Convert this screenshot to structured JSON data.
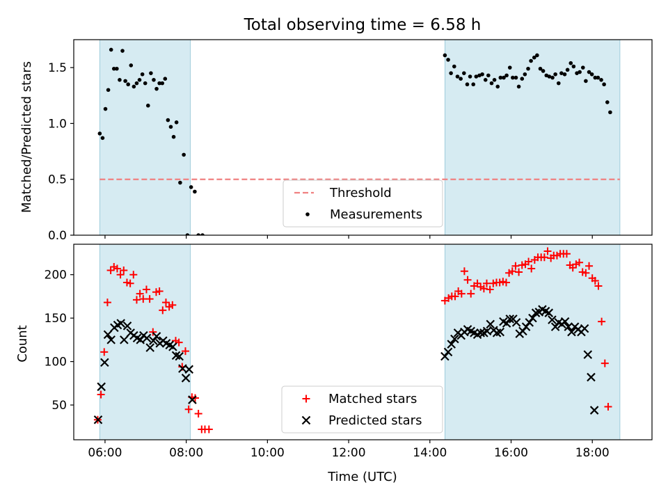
{
  "title": "Total observing time = 6.58 h",
  "colors": {
    "shade": "#add8e6",
    "threshold": "#f08080",
    "measurement": "#000000",
    "matched": "#ff0000",
    "predicted": "#000000"
  },
  "chart_data": [
    {
      "type": "scatter",
      "ylabel": "Matched/Predicted stars",
      "xlabel": "",
      "xlim_hours": [
        5.23,
        19.47
      ],
      "ylim": [
        0,
        1.75
      ],
      "yticks": [
        0.0,
        0.5,
        1.0,
        1.5
      ],
      "ytick_labels": [
        "0.0",
        "0.5",
        "1.0",
        "1.5"
      ],
      "shaded_intervals_hours": [
        [
          5.87,
          8.1
        ],
        [
          14.37,
          18.68
        ]
      ],
      "threshold": {
        "label": "Threshold",
        "value": 0.5,
        "style": "dashed",
        "x_range_hours": [
          5.87,
          18.68
        ]
      },
      "legend": {
        "position": "bottom-center",
        "entries": [
          "Threshold",
          "Measurements"
        ]
      },
      "series": [
        {
          "name": "Measurements",
          "marker": "dot",
          "points": [
            [
              5.87,
              0.91
            ],
            [
              5.94,
              0.87
            ],
            [
              6.01,
              1.13
            ],
            [
              6.08,
              1.3
            ],
            [
              6.15,
              1.66
            ],
            [
              6.22,
              1.49
            ],
            [
              6.29,
              1.49
            ],
            [
              6.36,
              1.39
            ],
            [
              6.43,
              1.65
            ],
            [
              6.5,
              1.38
            ],
            [
              6.57,
              1.35
            ],
            [
              6.64,
              1.52
            ],
            [
              6.71,
              1.33
            ],
            [
              6.78,
              1.36
            ],
            [
              6.85,
              1.39
            ],
            [
              6.92,
              1.44
            ],
            [
              6.99,
              1.36
            ],
            [
              7.06,
              1.16
            ],
            [
              7.13,
              1.45
            ],
            [
              7.2,
              1.39
            ],
            [
              7.27,
              1.31
            ],
            [
              7.34,
              1.36
            ],
            [
              7.41,
              1.36
            ],
            [
              7.48,
              1.4
            ],
            [
              7.55,
              1.03
            ],
            [
              7.62,
              0.97
            ],
            [
              7.69,
              0.88
            ],
            [
              7.76,
              1.01
            ],
            [
              7.85,
              0.47
            ],
            [
              7.94,
              0.72
            ],
            [
              8.03,
              0.0
            ],
            [
              8.12,
              0.43
            ],
            [
              8.21,
              0.39
            ],
            [
              8.3,
              0.0
            ],
            [
              8.4,
              0.0
            ],
            [
              14.37,
              1.61
            ],
            [
              14.45,
              1.57
            ],
            [
              14.52,
              1.45
            ],
            [
              14.6,
              1.51
            ],
            [
              14.68,
              1.42
            ],
            [
              14.76,
              1.4
            ],
            [
              14.84,
              1.45
            ],
            [
              14.92,
              1.35
            ],
            [
              14.99,
              1.42
            ],
            [
              15.07,
              1.35
            ],
            [
              15.14,
              1.42
            ],
            [
              15.22,
              1.43
            ],
            [
              15.29,
              1.44
            ],
            [
              15.37,
              1.39
            ],
            [
              15.44,
              1.43
            ],
            [
              15.52,
              1.36
            ],
            [
              15.59,
              1.39
            ],
            [
              15.67,
              1.33
            ],
            [
              15.74,
              1.41
            ],
            [
              15.82,
              1.41
            ],
            [
              15.89,
              1.43
            ],
            [
              15.97,
              1.5
            ],
            [
              16.04,
              1.41
            ],
            [
              16.12,
              1.41
            ],
            [
              16.19,
              1.33
            ],
            [
              16.27,
              1.4
            ],
            [
              16.34,
              1.44
            ],
            [
              16.42,
              1.49
            ],
            [
              16.49,
              1.56
            ],
            [
              16.57,
              1.59
            ],
            [
              16.64,
              1.61
            ],
            [
              16.72,
              1.49
            ],
            [
              16.79,
              1.47
            ],
            [
              16.87,
              1.43
            ],
            [
              16.94,
              1.42
            ],
            [
              17.02,
              1.41
            ],
            [
              17.09,
              1.44
            ],
            [
              17.17,
              1.36
            ],
            [
              17.24,
              1.45
            ],
            [
              17.32,
              1.44
            ],
            [
              17.39,
              1.48
            ],
            [
              17.47,
              1.54
            ],
            [
              17.54,
              1.51
            ],
            [
              17.62,
              1.45
            ],
            [
              17.69,
              1.46
            ],
            [
              17.77,
              1.5
            ],
            [
              17.84,
              1.38
            ],
            [
              17.92,
              1.46
            ],
            [
              17.99,
              1.44
            ],
            [
              18.07,
              1.41
            ],
            [
              18.14,
              1.41
            ],
            [
              18.22,
              1.39
            ],
            [
              18.29,
              1.35
            ],
            [
              18.37,
              1.19
            ],
            [
              18.44,
              1.1
            ]
          ]
        }
      ]
    },
    {
      "type": "scatter",
      "ylabel": "Count",
      "xlabel": "Time (UTC)",
      "xlim_hours": [
        5.23,
        19.47
      ],
      "ylim": [
        10,
        235
      ],
      "yticks": [
        50,
        100,
        150,
        200
      ],
      "ytick_labels": [
        "50",
        "100",
        "150",
        "200"
      ],
      "xticks_hours": [
        6,
        8,
        10,
        12,
        14,
        16,
        18
      ],
      "xtick_labels": [
        "06:00",
        "08:00",
        "10:00",
        "12:00",
        "14:00",
        "16:00",
        "18:00"
      ],
      "shaded_intervals_hours": [
        [
          5.87,
          8.1
        ],
        [
          14.37,
          18.68
        ]
      ],
      "legend": {
        "position": "bottom-center",
        "entries": [
          "Matched stars",
          "Predicted stars"
        ]
      },
      "series": [
        {
          "name": "Matched stars",
          "marker": "plus",
          "points": [
            [
              5.82,
              33
            ],
            [
              5.9,
              62
            ],
            [
              5.98,
              111
            ],
            [
              6.06,
              168
            ],
            [
              6.14,
              205
            ],
            [
              6.22,
              209
            ],
            [
              6.3,
              207
            ],
            [
              6.38,
              200
            ],
            [
              6.46,
              205
            ],
            [
              6.54,
              191
            ],
            [
              6.62,
              190
            ],
            [
              6.7,
              200
            ],
            [
              6.78,
              171
            ],
            [
              6.86,
              178
            ],
            [
              6.94,
              172
            ],
            [
              7.02,
              183
            ],
            [
              7.1,
              172
            ],
            [
              7.18,
              134
            ],
            [
              7.26,
              180
            ],
            [
              7.34,
              181
            ],
            [
              7.42,
              159
            ],
            [
              7.5,
              168
            ],
            [
              7.58,
              163
            ],
            [
              7.66,
              165
            ],
            [
              7.74,
              124
            ],
            [
              7.82,
              122
            ],
            [
              7.9,
              94
            ],
            [
              7.98,
              112
            ],
            [
              8.06,
              45
            ],
            [
              8.14,
              59
            ],
            [
              8.22,
              58
            ],
            [
              8.3,
              40
            ],
            [
              8.38,
              22
            ],
            [
              8.46,
              22
            ],
            [
              8.56,
              22
            ],
            [
              14.37,
              170
            ],
            [
              14.46,
              173
            ],
            [
              14.54,
              175
            ],
            [
              14.62,
              175
            ],
            [
              14.7,
              181
            ],
            [
              14.78,
              178
            ],
            [
              14.85,
              204
            ],
            [
              14.93,
              194
            ],
            [
              15.01,
              178
            ],
            [
              15.09,
              187
            ],
            [
              15.17,
              190
            ],
            [
              15.25,
              186
            ],
            [
              15.33,
              184
            ],
            [
              15.4,
              190
            ],
            [
              15.48,
              183
            ],
            [
              15.56,
              190
            ],
            [
              15.64,
              191
            ],
            [
              15.72,
              191
            ],
            [
              15.8,
              192
            ],
            [
              15.88,
              191
            ],
            [
              15.95,
              202
            ],
            [
              16.03,
              204
            ],
            [
              16.11,
              210
            ],
            [
              16.19,
              203
            ],
            [
              16.27,
              211
            ],
            [
              16.35,
              212
            ],
            [
              16.43,
              215
            ],
            [
              16.5,
              207
            ],
            [
              16.58,
              217
            ],
            [
              16.66,
              220
            ],
            [
              16.74,
              220
            ],
            [
              16.82,
              220
            ],
            [
              16.9,
              227
            ],
            [
              16.98,
              219
            ],
            [
              17.05,
              222
            ],
            [
              17.13,
              222
            ],
            [
              17.21,
              224
            ],
            [
              17.29,
              224
            ],
            [
              17.37,
              224
            ],
            [
              17.45,
              211
            ],
            [
              17.52,
              208
            ],
            [
              17.6,
              212
            ],
            [
              17.68,
              214
            ],
            [
              17.76,
              203
            ],
            [
              17.84,
              202
            ],
            [
              17.92,
              210
            ],
            [
              18.0,
              196
            ],
            [
              18.07,
              193
            ],
            [
              18.15,
              187
            ],
            [
              18.23,
              146
            ],
            [
              18.31,
              98
            ],
            [
              18.39,
              48
            ]
          ]
        },
        {
          "name": "Predicted stars",
          "marker": "x",
          "points": [
            [
              5.83,
              33
            ],
            [
              5.91,
              71
            ],
            [
              5.99,
              99
            ],
            [
              6.07,
              131
            ],
            [
              6.15,
              125
            ],
            [
              6.23,
              139
            ],
            [
              6.31,
              142
            ],
            [
              6.39,
              144
            ],
            [
              6.47,
              125
            ],
            [
              6.55,
              141
            ],
            [
              6.63,
              133
            ],
            [
              6.71,
              130
            ],
            [
              6.79,
              127
            ],
            [
              6.87,
              125
            ],
            [
              6.95,
              130
            ],
            [
              7.03,
              127
            ],
            [
              7.11,
              116
            ],
            [
              7.19,
              124
            ],
            [
              7.27,
              129
            ],
            [
              7.35,
              121
            ],
            [
              7.43,
              124
            ],
            [
              7.51,
              121
            ],
            [
              7.59,
              119
            ],
            [
              7.67,
              117
            ],
            [
              7.75,
              107
            ],
            [
              7.83,
              106
            ],
            [
              7.91,
              92
            ],
            [
              7.99,
              81
            ],
            [
              8.07,
              91
            ],
            [
              8.15,
              56
            ],
            [
              14.37,
              106
            ],
            [
              14.45,
              111
            ],
            [
              14.53,
              120
            ],
            [
              14.61,
              126
            ],
            [
              14.69,
              133
            ],
            [
              14.77,
              130
            ],
            [
              14.85,
              134
            ],
            [
              14.93,
              137
            ],
            [
              15.01,
              135
            ],
            [
              15.09,
              133
            ],
            [
              15.17,
              131
            ],
            [
              15.25,
              133
            ],
            [
              15.33,
              133
            ],
            [
              15.41,
              135
            ],
            [
              15.49,
              143
            ],
            [
              15.57,
              136
            ],
            [
              15.65,
              133
            ],
            [
              15.73,
              134
            ],
            [
              15.81,
              146
            ],
            [
              15.89,
              144
            ],
            [
              15.97,
              149
            ],
            [
              16.05,
              149
            ],
            [
              16.13,
              145
            ],
            [
              16.21,
              132
            ],
            [
              16.29,
              135
            ],
            [
              16.37,
              140
            ],
            [
              16.45,
              145
            ],
            [
              16.53,
              150
            ],
            [
              16.61,
              156
            ],
            [
              16.69,
              157
            ],
            [
              16.77,
              160
            ],
            [
              16.85,
              158
            ],
            [
              16.93,
              156
            ],
            [
              17.01,
              148
            ],
            [
              17.09,
              140
            ],
            [
              17.17,
              145
            ],
            [
              17.25,
              143
            ],
            [
              17.33,
              146
            ],
            [
              17.41,
              140
            ],
            [
              17.49,
              134
            ],
            [
              17.57,
              140
            ],
            [
              17.65,
              137
            ],
            [
              17.73,
              134
            ],
            [
              17.81,
              138
            ],
            [
              17.89,
              108
            ],
            [
              17.97,
              82
            ],
            [
              18.05,
              44
            ]
          ]
        }
      ]
    }
  ]
}
